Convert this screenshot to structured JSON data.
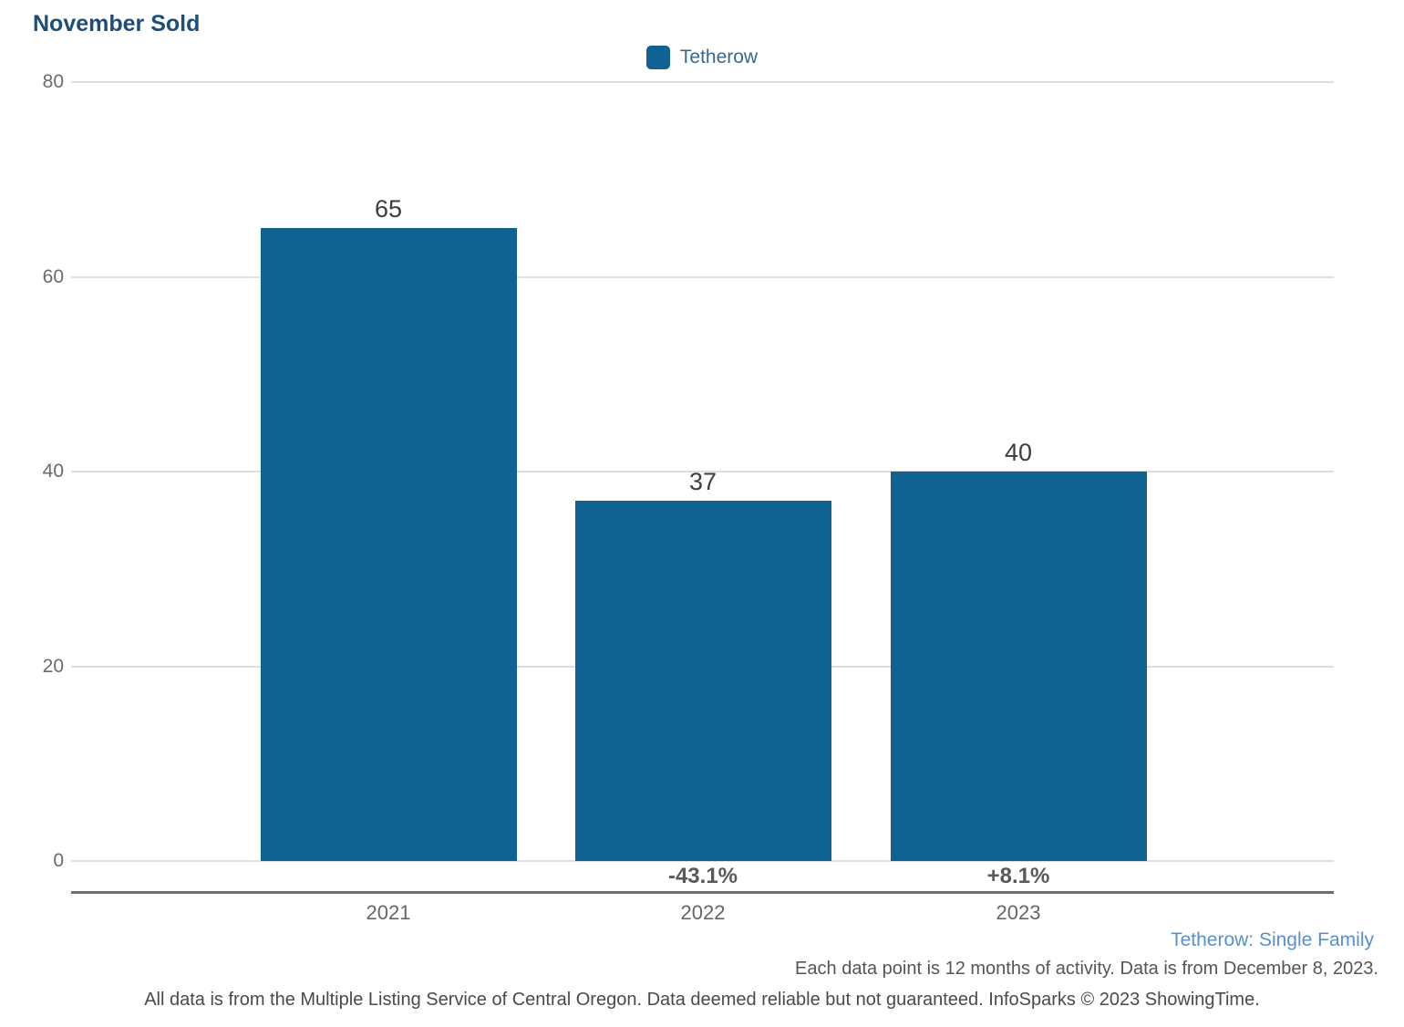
{
  "title": "November Sold",
  "legend": {
    "label": "Tetherow",
    "swatch_color": "#0f6291"
  },
  "chart_data": {
    "type": "bar",
    "title": "November Sold",
    "categories": [
      "2021",
      "2022",
      "2023"
    ],
    "series": [
      {
        "name": "Tetherow",
        "values": [
          65,
          37,
          40
        ]
      }
    ],
    "value_labels": [
      "65",
      "37",
      "40"
    ],
    "pct_change_labels": [
      "",
      "-43.1%",
      "+8.1%"
    ],
    "xlabel": "",
    "ylabel": "",
    "ylim": [
      0,
      80
    ],
    "yticks": [
      0,
      20,
      40,
      60,
      80
    ],
    "grid": true,
    "legend_position": "top-center",
    "bar_color": "#0f6291"
  },
  "footnotes": {
    "segment": "Tetherow: Single Family",
    "data_note": "Each data point is 12 months of activity. Data is from December 8, 2023.",
    "disclaimer": "All data is from the Multiple Listing Service of Central Oregon. Data deemed reliable but not guaranteed. InfoSparks © 2023 ShowingTime."
  }
}
